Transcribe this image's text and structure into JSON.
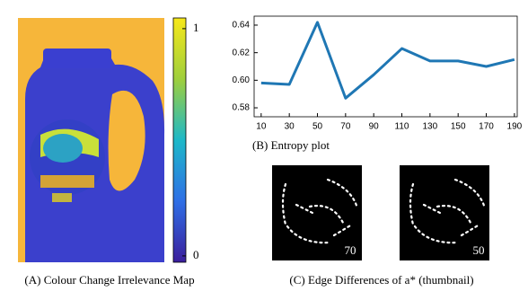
{
  "panel_a": {
    "caption": "(A) Colour Change Irrelevance Map",
    "colorbar": {
      "lim": [
        -0.028,
        1.047
      ],
      "ticks": [
        1,
        0
      ]
    }
  },
  "chart_data": {
    "type": "line",
    "caption": "(B) Entropy plot",
    "x": [
      10,
      30,
      50,
      70,
      90,
      110,
      130,
      150,
      170,
      190
    ],
    "values": [
      0.598,
      0.597,
      0.642,
      0.587,
      0.604,
      0.623,
      0.614,
      0.614,
      0.61,
      0.615
    ],
    "color": "#1f77b4",
    "xlim": [
      5,
      192
    ],
    "xticks": [
      10,
      30,
      50,
      70,
      90,
      110,
      130,
      150,
      170,
      190
    ],
    "ylim": [
      0.5735,
      0.6465
    ],
    "yticks": [
      {
        "value": 0.58,
        "label": "0.58"
      },
      {
        "value": 0.6,
        "label": "0.60"
      },
      {
        "value": 0.62,
        "label": "0.62"
      },
      0.64
    ]
  },
  "panel_c": {
    "caption": "(C) Edge Differences of a* (thumbnail)",
    "thumbnails": [
      {
        "label": "70"
      },
      {
        "label": "50"
      }
    ]
  }
}
